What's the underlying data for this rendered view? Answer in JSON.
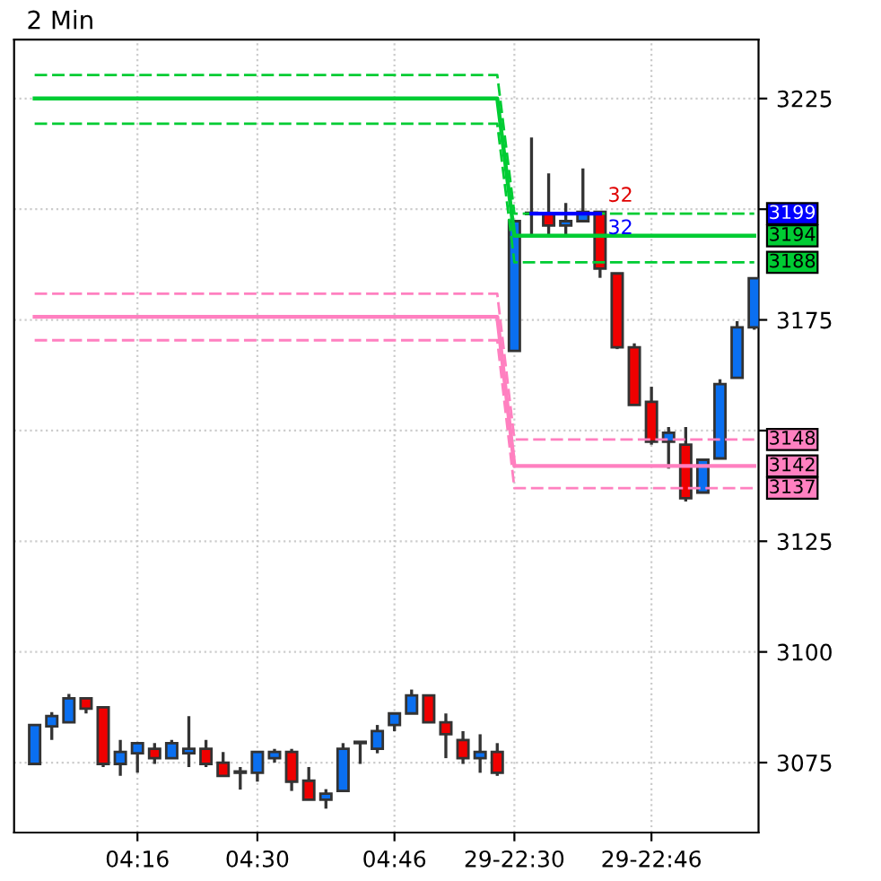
{
  "chart_data": {
    "type": "candlestick",
    "title": "2 Min",
    "categories": [
      null,
      null,
      null,
      null,
      null,
      null,
      "04:16",
      null,
      null,
      null,
      null,
      null,
      null,
      "04:30",
      null,
      null,
      null,
      null,
      null,
      null,
      null,
      "04:46",
      null,
      null,
      null,
      null,
      null,
      null,
      "29-22:30",
      null,
      null,
      null,
      null,
      null,
      null,
      null,
      "29-22:46",
      null,
      null,
      null,
      null,
      null,
      null
    ],
    "ohlc": [
      [
        3074.7,
        3083.5,
        3074.7,
        3083.5
      ],
      [
        3083.2,
        3086.4,
        3080.1,
        3085.5
      ],
      [
        3084.1,
        3090.5,
        3084.1,
        3089.5
      ],
      [
        3089.5,
        3089.5,
        3086.1,
        3087.2
      ],
      [
        3087.5,
        3087.5,
        3074.0,
        3074.7
      ],
      [
        3074.7,
        3080.1,
        3072.0,
        3077.4
      ],
      [
        3077.1,
        3079.4,
        3072.7,
        3079.4
      ],
      [
        3078.1,
        3079.4,
        3074.7,
        3076.0
      ],
      [
        3076.0,
        3080.1,
        3076.0,
        3079.4
      ],
      [
        3077.1,
        3085.5,
        3074.0,
        3078.1
      ],
      [
        3078.1,
        3080.1,
        3074.0,
        3074.7
      ],
      [
        3075.0,
        3077.4,
        3072.0,
        3072.0
      ],
      [
        3072.7,
        3074.0,
        3068.9,
        3072.9
      ],
      [
        3072.7,
        3077.4,
        3070.7,
        3077.4
      ],
      [
        3076.0,
        3078.1,
        3075.0,
        3077.4
      ],
      [
        3077.4,
        3078.1,
        3068.6,
        3070.7
      ],
      [
        3070.9,
        3074.0,
        3066.6,
        3066.6
      ],
      [
        3066.6,
        3069.0,
        3064.6,
        3068.0
      ],
      [
        3068.6,
        3079.4,
        3068.6,
        3078.1
      ],
      [
        3079.4,
        3079.4,
        3074.7,
        3079.4
      ],
      [
        3078.1,
        3083.5,
        3077.1,
        3082.1
      ],
      [
        3083.5,
        3086.1,
        3082.1,
        3086.1
      ],
      [
        3086.1,
        3091.5,
        3086.1,
        3090.2
      ],
      [
        3090.2,
        3090.2,
        3084.1,
        3084.1
      ],
      [
        3084.1,
        3086.1,
        3076.0,
        3081.4
      ],
      [
        3080.1,
        3082.1,
        3074.7,
        3076.0
      ],
      [
        3076.0,
        3081.4,
        3072.7,
        3077.4
      ],
      [
        3077.4,
        3079.4,
        3072.0,
        3072.7
      ],
      [
        3168.0,
        3197.3,
        3168.0,
        3197.3
      ],
      [
        3198.9,
        3216.2,
        3194.0,
        3198.9
      ],
      [
        3198.9,
        3208.1,
        3194.0,
        3196.3
      ],
      [
        3196.3,
        3201.4,
        3194.0,
        3197.3
      ],
      [
        3197.3,
        3209.2,
        3197.3,
        3199.4
      ],
      [
        3199.4,
        3199.4,
        3184.5,
        3186.6
      ],
      [
        3185.5,
        3185.5,
        3168.4,
        3168.8
      ],
      [
        3168.8,
        3169.7,
        3155.8,
        3155.8
      ],
      [
        3156.5,
        3159.9,
        3146.8,
        3147.5
      ],
      [
        3147.5,
        3150.8,
        3141.4,
        3149.5
      ],
      [
        3146.8,
        3150.8,
        3134.0,
        3134.7
      ],
      [
        3136.0,
        3143.4,
        3136.0,
        3143.4
      ],
      [
        3143.7,
        3161.6,
        3143.7,
        3160.5
      ],
      [
        3161.9,
        3174.7,
        3161.9,
        3173.3
      ],
      [
        3173.3,
        3184.4,
        3172.8,
        3184.4
      ]
    ],
    "colors": [
      "#0a6ff0",
      "#0a6ff0",
      "#0a6ff0",
      "#f00000",
      "#f00000",
      "#0a6ff0",
      "#0a6ff0",
      "#f00000",
      "#0a6ff0",
      "#0a6ff0",
      "#f00000",
      "#f00000",
      "#0a6ff0",
      "#0a6ff0",
      "#0a6ff0",
      "#f00000",
      "#f00000",
      "#0a6ff0",
      "#0a6ff0",
      "#0a6ff0",
      "#0a6ff0",
      "#0a6ff0",
      "#0a6ff0",
      "#f00000",
      "#f00000",
      "#f00000",
      "#0a6ff0",
      "#f00000",
      "#0a6ff0",
      "#0a6ff0",
      "#f00000",
      "#0a6ff0",
      "#0a6ff0",
      "#f00000",
      "#f00000",
      "#f00000",
      "#f00000",
      "#0a6ff0",
      "#f00000",
      "#0a6ff0",
      "#0a6ff0",
      "#0a6ff0",
      "#0a6ff0"
    ],
    "series": [
      {
        "type": "line",
        "color": "#00cc33",
        "line_style": "dashed",
        "values": [
          3230.3,
          3230.3,
          3230.3,
          3230.3,
          3230.3,
          3230.3,
          3230.3,
          3230.3,
          3230.3,
          3230.3,
          3230.3,
          3230.3,
          3230.3,
          3230.3,
          3230.3,
          3230.3,
          3230.3,
          3230.3,
          3230.3,
          3230.3,
          3230.3,
          3230.3,
          3230.3,
          3230.3,
          3230.3,
          3230.3,
          3230.3,
          3230.3,
          3199,
          3199,
          3199,
          3199,
          3199,
          3199,
          3199,
          3199,
          3199,
          3199,
          3199,
          3199,
          3199,
          3199,
          3199
        ]
      },
      {
        "type": "line",
        "color": "#00cc33",
        "line_style": "solid",
        "values": [
          3225,
          3225,
          3225,
          3225,
          3225,
          3225,
          3225,
          3225,
          3225,
          3225,
          3225,
          3225,
          3225,
          3225,
          3225,
          3225,
          3225,
          3225,
          3225,
          3225,
          3225,
          3225,
          3225,
          3225,
          3225,
          3225,
          3225,
          3225,
          3194,
          3194,
          3194,
          3194,
          3194,
          3194,
          3194,
          3194,
          3194,
          3194,
          3194,
          3194,
          3194,
          3194,
          3194
        ],
        "value_labels": [
          null,
          null,
          null,
          null,
          null,
          null,
          null,
          null,
          null,
          null,
          null,
          null,
          null,
          null,
          null,
          null,
          null,
          null,
          null,
          null,
          null,
          null,
          null,
          null,
          null,
          null,
          null,
          null,
          null,
          null,
          null,
          null,
          null,
          null,
          null,
          null,
          null,
          null,
          null,
          null,
          null,
          null,
          "3194"
        ]
      },
      {
        "type": "line",
        "color": "#00cc33",
        "line_style": "dashed",
        "values": [
          3219.3,
          3219.3,
          3219.3,
          3219.3,
          3219.3,
          3219.3,
          3219.3,
          3219.3,
          3219.3,
          3219.3,
          3219.3,
          3219.3,
          3219.3,
          3219.3,
          3219.3,
          3219.3,
          3219.3,
          3219.3,
          3219.3,
          3219.3,
          3219.3,
          3219.3,
          3219.3,
          3219.3,
          3219.3,
          3219.3,
          3219.3,
          3219.3,
          3188,
          3188,
          3188,
          3188,
          3188,
          3188,
          3188,
          3188,
          3188,
          3188,
          3188,
          3188,
          3188,
          3188,
          3188
        ],
        "value_labels": [
          null,
          null,
          null,
          null,
          null,
          null,
          null,
          null,
          null,
          null,
          null,
          null,
          null,
          null,
          null,
          null,
          null,
          null,
          null,
          null,
          null,
          null,
          null,
          null,
          null,
          null,
          null,
          null,
          null,
          null,
          null,
          null,
          null,
          null,
          null,
          null,
          null,
          null,
          null,
          null,
          null,
          null,
          "3188"
        ]
      },
      {
        "type": "line",
        "color": "#ff80c0",
        "line_style": "dashed",
        "values": [
          3180.9,
          3180.9,
          3180.9,
          3180.9,
          3180.9,
          3180.9,
          3180.9,
          3180.9,
          3180.9,
          3180.9,
          3180.9,
          3180.9,
          3180.9,
          3180.9,
          3180.9,
          3180.9,
          3180.9,
          3180.9,
          3180.9,
          3180.9,
          3180.9,
          3180.9,
          3180.9,
          3180.9,
          3180.9,
          3180.9,
          3180.9,
          3180.9,
          3148,
          3148,
          3148,
          3148,
          3148,
          3148,
          3148,
          3148,
          3148,
          3148,
          3148,
          3148,
          3148,
          3148,
          3148
        ],
        "value_labels": [
          null,
          null,
          null,
          null,
          null,
          null,
          null,
          null,
          null,
          null,
          null,
          null,
          null,
          null,
          null,
          null,
          null,
          null,
          null,
          null,
          null,
          null,
          null,
          null,
          null,
          null,
          null,
          null,
          null,
          null,
          null,
          null,
          null,
          null,
          null,
          null,
          null,
          null,
          null,
          null,
          null,
          null,
          "3148"
        ]
      },
      {
        "type": "line",
        "color": "#ff80c0",
        "line_style": "solid",
        "values": [
          3175.7,
          3175.7,
          3175.7,
          3175.7,
          3175.7,
          3175.7,
          3175.7,
          3175.7,
          3175.7,
          3175.7,
          3175.7,
          3175.7,
          3175.7,
          3175.7,
          3175.7,
          3175.7,
          3175.7,
          3175.7,
          3175.7,
          3175.7,
          3175.7,
          3175.7,
          3175.7,
          3175.7,
          3175.7,
          3175.7,
          3175.7,
          3175.7,
          3142,
          3142,
          3142,
          3142,
          3142,
          3142,
          3142,
          3142,
          3142,
          3142,
          3142,
          3142,
          3142,
          3142,
          3142
        ],
        "value_labels": [
          null,
          null,
          null,
          null,
          null,
          null,
          null,
          null,
          null,
          null,
          null,
          null,
          null,
          null,
          null,
          null,
          null,
          null,
          null,
          null,
          null,
          null,
          null,
          null,
          null,
          null,
          null,
          null,
          null,
          null,
          null,
          null,
          null,
          null,
          null,
          null,
          null,
          null,
          null,
          null,
          null,
          null,
          "3142"
        ]
      },
      {
        "type": "line",
        "color": "#ff80c0",
        "line_style": "dashed",
        "values": [
          3170.4,
          3170.4,
          3170.4,
          3170.4,
          3170.4,
          3170.4,
          3170.4,
          3170.4,
          3170.4,
          3170.4,
          3170.4,
          3170.4,
          3170.4,
          3170.4,
          3170.4,
          3170.4,
          3170.4,
          3170.4,
          3170.4,
          3170.4,
          3170.4,
          3170.4,
          3170.4,
          3170.4,
          3170.4,
          3170.4,
          3170.4,
          3170.4,
          3137,
          3137,
          3137,
          3137,
          3137,
          3137,
          3137,
          3137,
          3137,
          3137,
          3137,
          3137,
          3137,
          3137,
          3137
        ],
        "value_labels": [
          null,
          null,
          null,
          null,
          null,
          null,
          null,
          null,
          null,
          null,
          null,
          null,
          null,
          null,
          null,
          null,
          null,
          null,
          null,
          null,
          null,
          null,
          null,
          null,
          null,
          null,
          null,
          null,
          null,
          null,
          null,
          null,
          null,
          null,
          null,
          null,
          null,
          null,
          null,
          null,
          null,
          null,
          "3137"
        ]
      },
      {
        "type": "line",
        "color": "#0000ff",
        "line_style": "solid",
        "values": [
          null,
          null,
          null,
          null,
          null,
          null,
          null,
          null,
          null,
          null,
          null,
          null,
          null,
          null,
          null,
          null,
          null,
          null,
          null,
          null,
          null,
          null,
          null,
          null,
          null,
          null,
          null,
          null,
          null,
          3199,
          3199,
          3199,
          3199,
          3199,
          null,
          null,
          null,
          null,
          null,
          null,
          null,
          null,
          null
        ],
        "value_labels": [
          null,
          null,
          null,
          null,
          null,
          null,
          null,
          null,
          null,
          null,
          null,
          null,
          null,
          null,
          null,
          null,
          null,
          null,
          null,
          null,
          null,
          null,
          null,
          null,
          null,
          null,
          null,
          null,
          null,
          null,
          null,
          null,
          null,
          null,
          null,
          null,
          null,
          null,
          null,
          null,
          null,
          null,
          "3199"
        ]
      }
    ],
    "annotations": [
      "32",
      "32"
    ],
    "ylim": [
      3059.2,
      3238.3
    ],
    "yticks": [
      3075,
      3100,
      3125,
      {
        "value": 3150,
        "label": null
      },
      3175,
      {
        "value": 3200,
        "label": null
      },
      3225
    ],
    "grid": true
  }
}
